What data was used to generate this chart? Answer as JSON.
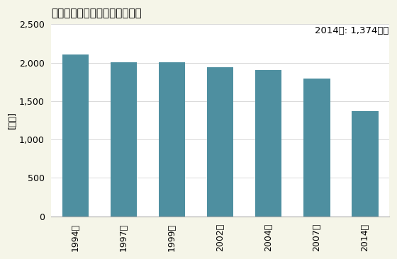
{
  "title": "機械器具小売業の店舗数の推移",
  "ylabel": "[店舗]",
  "annotation": "2014年: 1,374店舗",
  "categories": [
    "1994年",
    "1997年",
    "1999年",
    "2002年",
    "2004年",
    "2007年",
    "2014年"
  ],
  "values": [
    2104,
    2001,
    2001,
    1944,
    1907,
    1796,
    1374
  ],
  "bar_color": "#4e8fa0",
  "ylim": [
    0,
    2500
  ],
  "yticks": [
    0,
    500,
    1000,
    1500,
    2000,
    2500
  ],
  "background_color": "#f5f5e8",
  "plot_bg_color": "#ffffff",
  "title_fontsize": 11,
  "tick_fontsize": 9,
  "ylabel_fontsize": 9,
  "annotation_fontsize": 9.5
}
